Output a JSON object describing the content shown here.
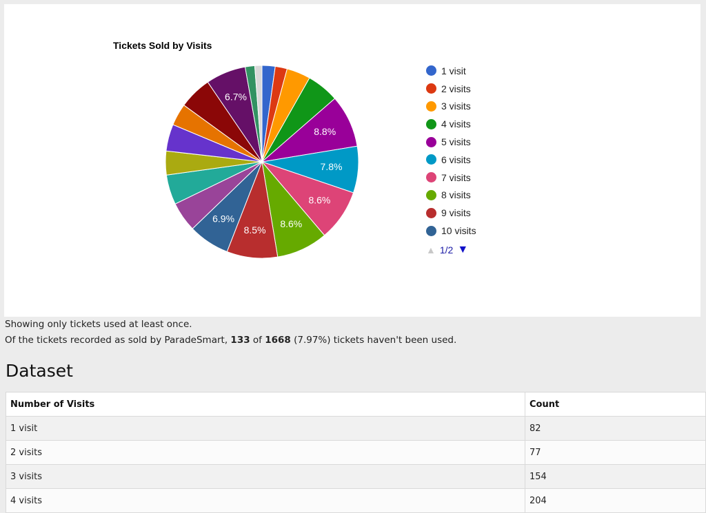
{
  "chart_data": {
    "type": "pie",
    "title": "Tickets Sold by Visits",
    "slices": [
      {
        "label": "1 visit",
        "percent": 2.2,
        "color": "#3366cc"
      },
      {
        "label": "2 visits",
        "percent": 2.0,
        "color": "#dc3912"
      },
      {
        "label": "3 visits",
        "percent": 4.0,
        "color": "#ff9900"
      },
      {
        "label": "4 visits",
        "percent": 5.4,
        "color": "#109618"
      },
      {
        "label": "5 visits",
        "percent": 8.8,
        "color": "#990099"
      },
      {
        "label": "6 visits",
        "percent": 7.8,
        "color": "#0099c6"
      },
      {
        "label": "7 visits",
        "percent": 8.6,
        "color": "#dd4477"
      },
      {
        "label": "8 visits",
        "percent": 8.6,
        "color": "#66aa00"
      },
      {
        "label": "9 visits",
        "percent": 8.5,
        "color": "#b82e2e"
      },
      {
        "label": "10 visits",
        "percent": 6.9,
        "color": "#316395"
      },
      {
        "label": "",
        "percent": 5.0,
        "color": "#994499"
      },
      {
        "label": "",
        "percent": 5.0,
        "color": "#22aa99"
      },
      {
        "label": "",
        "percent": 4.0,
        "color": "#aaaa11"
      },
      {
        "label": "",
        "percent": 4.5,
        "color": "#6633cc"
      },
      {
        "label": "",
        "percent": 3.7,
        "color": "#e67300"
      },
      {
        "label": "",
        "percent": 5.5,
        "color": "#8b0707"
      },
      {
        "label": "",
        "percent": 6.7,
        "color": "#651067"
      },
      {
        "label": "",
        "percent": 1.6,
        "color": "#329262"
      },
      {
        "label": "",
        "percent": 1.2,
        "color": "#d9d9d9"
      }
    ],
    "slice_labels": [
      "",
      "",
      "",
      "",
      "8.8%",
      "7.8%",
      "8.6%",
      "8.6%",
      "8.5%",
      "6.9%",
      "",
      "",
      "",
      "",
      "",
      "",
      "6.7%",
      "",
      ""
    ],
    "legend": {
      "placement": "right",
      "entries": [
        "1 visit",
        "2 visits",
        "3 visits",
        "4 visits",
        "5 visits",
        "6 visits",
        "7 visits",
        "8 visits",
        "9 visits",
        "10 visits"
      ],
      "colors": [
        "#3366cc",
        "#dc3912",
        "#ff9900",
        "#109618",
        "#990099",
        "#0099c6",
        "#dd4477",
        "#66aa00",
        "#b82e2e",
        "#316395"
      ]
    }
  },
  "pager": {
    "label": "1/2",
    "up_icon": "triangle-up-icon",
    "down_icon": "triangle-down-icon"
  },
  "notes": {
    "line1": "Showing only tickets used at least once.",
    "line2_prefix": "Of the tickets recorded as sold by ParadeSmart, ",
    "unused": "133",
    "of_word": " of ",
    "total": "1668",
    "line2_suffix": " (7.97%) tickets haven't been used."
  },
  "dataset": {
    "heading": "Dataset",
    "columns": [
      "Number of Visits",
      "Count"
    ],
    "rows": [
      [
        "1 visit",
        "82"
      ],
      [
        "2 visits",
        "77"
      ],
      [
        "3 visits",
        "154"
      ],
      [
        "4 visits",
        "204"
      ]
    ]
  }
}
